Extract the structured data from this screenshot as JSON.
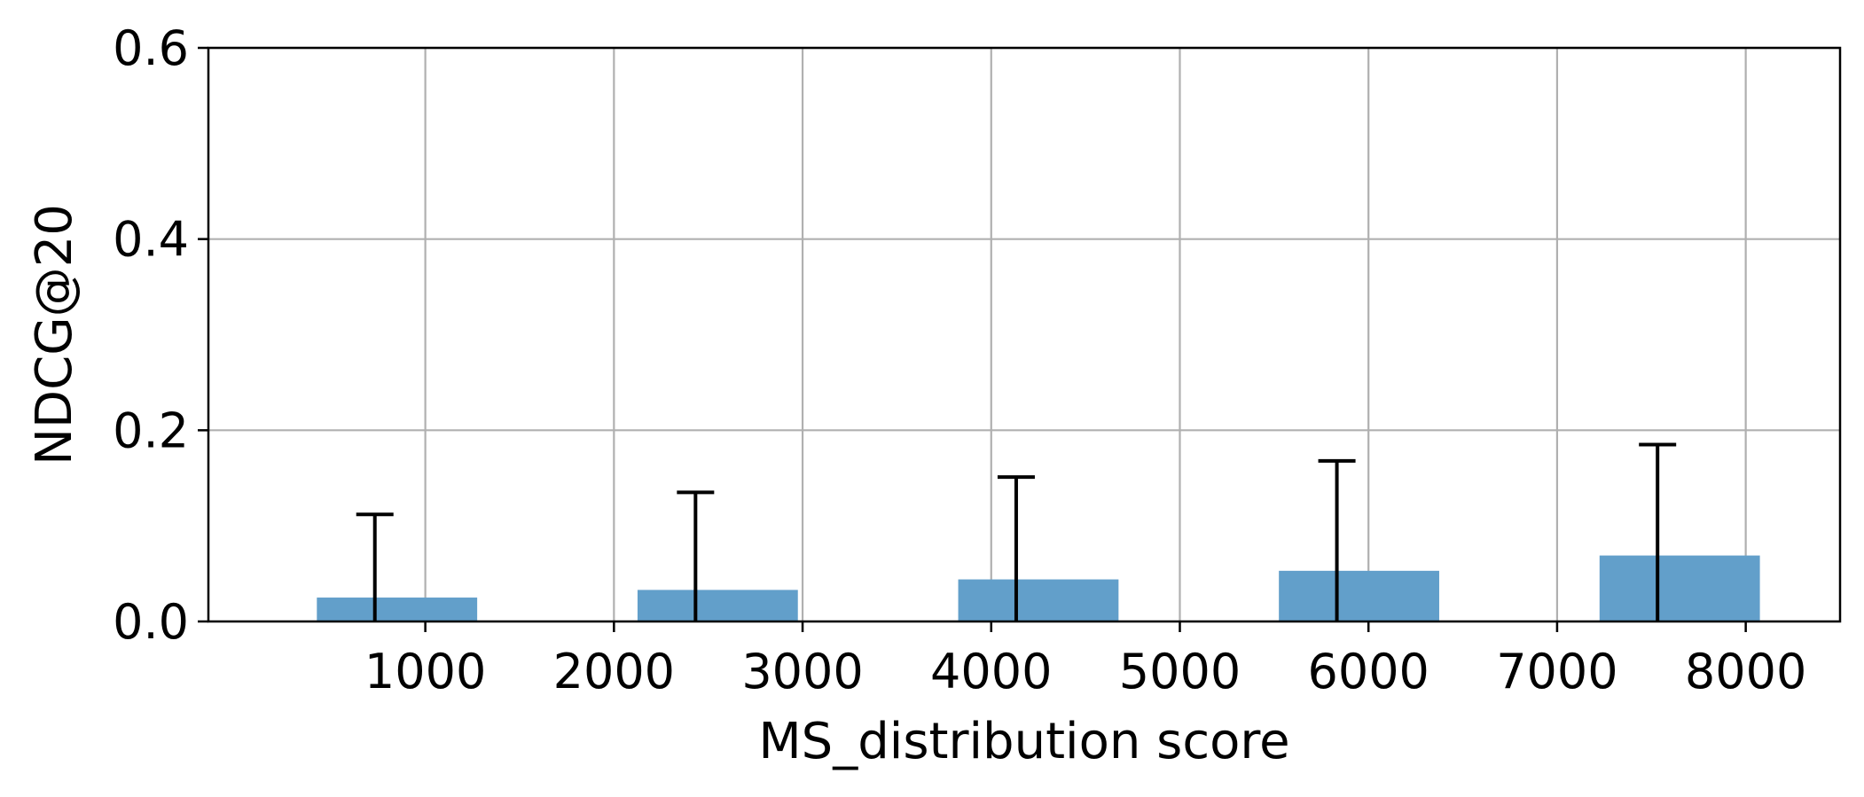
{
  "chart_data": {
    "type": "bar",
    "title": "",
    "xlabel": "MS_distribution score",
    "ylabel": "NDCG@20",
    "x": [
      850,
      2550,
      4250,
      5950,
      7650
    ],
    "values": [
      0.025,
      0.033,
      0.044,
      0.053,
      0.069
    ],
    "error_upper": [
      0.112,
      0.135,
      0.151,
      0.168,
      0.185
    ],
    "bar_width": 850,
    "xlim": [
      -150,
      8500
    ],
    "ylim": [
      0,
      0.6
    ],
    "xticks": [
      1000,
      2000,
      3000,
      4000,
      5000,
      6000,
      7000,
      8000
    ],
    "xtick_labels": [
      "1000",
      "2000",
      "3000",
      "4000",
      "5000",
      "6000",
      "7000",
      "8000"
    ],
    "yticks": [
      0.0,
      0.2,
      0.4,
      0.6
    ],
    "ytick_labels": [
      "0.0",
      "0.2",
      "0.4",
      "0.6"
    ],
    "grid": true,
    "bar_color": "#629fca",
    "errorbar_color": "#000000",
    "grid_color": "#b0b0b0"
  }
}
